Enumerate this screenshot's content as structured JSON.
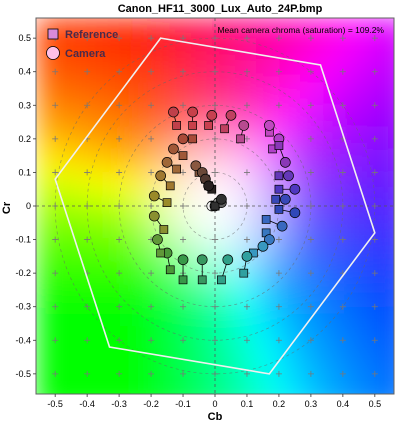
{
  "chart_data": {
    "type": "scatter",
    "title": "Canon_HF11_3000_Lux_Auto_24P.bmp",
    "xlabel": "Cb",
    "ylabel": "Cr",
    "xlim": [
      -0.56,
      0.56
    ],
    "ylim": [
      -0.56,
      0.56
    ],
    "xticks": [
      -0.5,
      -0.4,
      -0.3,
      -0.2,
      -0.1,
      0,
      0.1,
      0.2,
      0.3,
      0.4,
      0.5
    ],
    "yticks": [
      -0.5,
      -0.4,
      -0.3,
      -0.2,
      -0.1,
      0,
      0.1,
      0.2,
      0.3,
      0.4,
      0.5
    ],
    "grid": true,
    "legend_position": "top-left",
    "annotation": "Mean camera chroma (saturation) = 109.2%",
    "legend": [
      {
        "label": "Reference",
        "marker": "square",
        "color": "#d98ad9"
      },
      {
        "label": "Camera",
        "marker": "circle",
        "color": "#ffc0e8"
      }
    ],
    "gamut_hexagon": [
      [
        -0.17,
        0.5
      ],
      [
        0.33,
        0.42
      ],
      [
        0.5,
        -0.08
      ],
      [
        0.17,
        -0.5
      ],
      [
        -0.33,
        -0.42
      ],
      [
        -0.5,
        0.08
      ]
    ],
    "patches": [
      {
        "ref": [
          -0.12,
          0.24
        ],
        "cam": [
          -0.13,
          0.28
        ],
        "color": "#c0404a"
      },
      {
        "ref": [
          -0.07,
          0.24
        ],
        "cam": [
          -0.07,
          0.28
        ],
        "color": "#c8404a"
      },
      {
        "ref": [
          -0.02,
          0.24
        ],
        "cam": [
          -0.01,
          0.27
        ],
        "color": "#c84050"
      },
      {
        "ref": [
          0.03,
          0.23
        ],
        "cam": [
          0.05,
          0.27
        ],
        "color": "#c04060"
      },
      {
        "ref": [
          0.08,
          0.2
        ],
        "cam": [
          0.09,
          0.24
        ],
        "color": "#b84a90"
      },
      {
        "ref": [
          0.17,
          0.22
        ],
        "cam": [
          0.17,
          0.24
        ],
        "color": "#c048c0"
      },
      {
        "ref": [
          0.18,
          0.17
        ],
        "cam": [
          0.2,
          0.2
        ],
        "color": "#b040c8"
      },
      {
        "ref": [
          0.2,
          0.18
        ],
        "cam": [
          0.22,
          0.13
        ],
        "color": "#8a38b8"
      },
      {
        "ref": [
          0.2,
          0.09
        ],
        "cam": [
          0.23,
          0.09
        ],
        "color": "#6438b8"
      },
      {
        "ref": [
          0.2,
          0.05
        ],
        "cam": [
          0.25,
          0.05
        ],
        "color": "#5038c0"
      },
      {
        "ref": [
          0.19,
          0.02
        ],
        "cam": [
          0.22,
          0.02
        ],
        "color": "#3848b8"
      },
      {
        "ref": [
          0.2,
          -0.01
        ],
        "cam": [
          0.25,
          -0.02
        ],
        "color": "#3048b8"
      },
      {
        "ref": [
          0.16,
          -0.04
        ],
        "cam": [
          0.21,
          -0.06
        ],
        "color": "#3868c0"
      },
      {
        "ref": [
          0.16,
          -0.08
        ],
        "cam": [
          0.17,
          -0.1
        ],
        "color": "#3878c0"
      },
      {
        "ref": [
          0.12,
          -0.14
        ],
        "cam": [
          0.15,
          -0.12
        ],
        "color": "#3898c0"
      },
      {
        "ref": [
          0.09,
          -0.2
        ],
        "cam": [
          0.1,
          -0.15
        ],
        "color": "#30a0a0"
      },
      {
        "ref": [
          0.02,
          -0.22
        ],
        "cam": [
          0.04,
          -0.16
        ],
        "color": "#30a088"
      },
      {
        "ref": [
          -0.04,
          -0.22
        ],
        "cam": [
          -0.04,
          -0.16
        ],
        "color": "#389860"
      },
      {
        "ref": [
          -0.1,
          -0.22
        ],
        "cam": [
          -0.1,
          -0.16
        ],
        "color": "#389848"
      },
      {
        "ref": [
          -0.14,
          -0.19
        ],
        "cam": [
          -0.15,
          -0.14
        ],
        "color": "#4a9838"
      },
      {
        "ref": [
          -0.17,
          -0.14
        ],
        "cam": [
          -0.18,
          -0.1
        ],
        "color": "#609838"
      },
      {
        "ref": [
          -0.16,
          -0.07
        ],
        "cam": [
          -0.19,
          -0.03
        ],
        "color": "#8a9030"
      },
      {
        "ref": [
          -0.15,
          0.01
        ],
        "cam": [
          -0.19,
          0.03
        ],
        "color": "#9a8a28"
      },
      {
        "ref": [
          -0.14,
          0.06
        ],
        "cam": [
          -0.17,
          0.09
        ],
        "color": "#a07830"
      },
      {
        "ref": [
          -0.12,
          0.11
        ],
        "cam": [
          -0.15,
          0.13
        ],
        "color": "#a06838"
      },
      {
        "ref": [
          -0.1,
          0.15
        ],
        "cam": [
          -0.13,
          0.17
        ],
        "color": "#a05838"
      },
      {
        "ref": [
          -0.07,
          0.2
        ],
        "cam": [
          -0.1,
          0.2
        ],
        "color": "#a84a38"
      },
      {
        "ref": [
          -0.05,
          0.1
        ],
        "cam": [
          -0.06,
          0.12
        ],
        "color": "#8a5840"
      },
      {
        "ref": [
          -0.03,
          0.08
        ],
        "cam": [
          -0.04,
          0.1
        ],
        "color": "#6a4838"
      },
      {
        "ref": [
          -0.02,
          0.06
        ],
        "cam": [
          -0.03,
          0.08
        ],
        "color": "#503830"
      },
      {
        "ref": [
          -0.01,
          0.05
        ],
        "cam": [
          -0.02,
          0.06
        ],
        "color": "#282020"
      },
      {
        "ref": [
          0.0,
          0.0
        ],
        "cam": [
          -0.01,
          0.0
        ],
        "color": "#f0f0f0"
      },
      {
        "ref": [
          0.0,
          0.0
        ],
        "cam": [
          0.0,
          0.0
        ],
        "color": "#c8c8c8"
      },
      {
        "ref": [
          0.0,
          0.0
        ],
        "cam": [
          0.01,
          0.01
        ],
        "color": "#909090"
      },
      {
        "ref": [
          0.0,
          0.0
        ],
        "cam": [
          0.02,
          0.01
        ],
        "color": "#606060"
      },
      {
        "ref": [
          0.0,
          0.0
        ],
        "cam": [
          0.02,
          0.02
        ],
        "color": "#303030"
      }
    ]
  }
}
